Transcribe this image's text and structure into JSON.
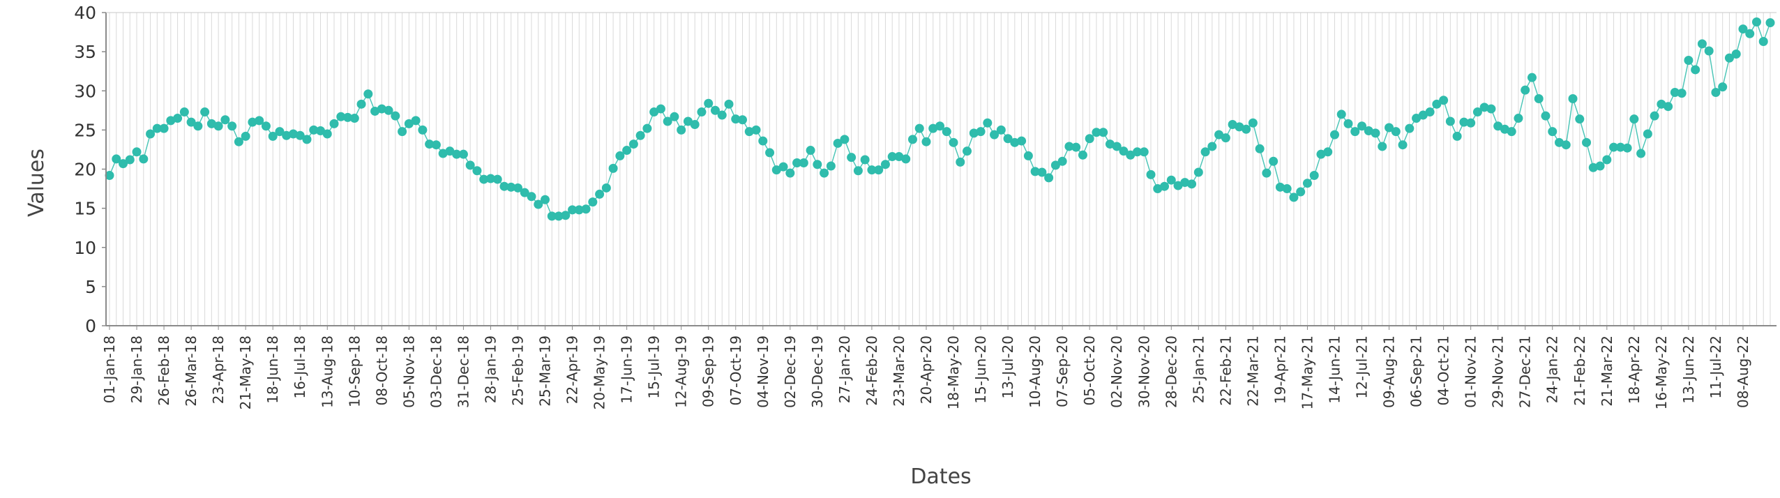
{
  "chart_data": {
    "type": "line",
    "title": "",
    "xlabel": "Dates",
    "ylabel": "Values",
    "ylim": [
      0,
      40
    ],
    "yticks": [
      0,
      5,
      10,
      15,
      20,
      25,
      30,
      35,
      40
    ],
    "x_start": "01-Jan-18",
    "x_step_days": 7,
    "xtick_labels": [
      "01-Jan-18",
      "29-Jan-18",
      "26-Feb-18",
      "26-Mar-18",
      "23-Apr-18",
      "21-May-18",
      "18-Jun-18",
      "16-Jul-18",
      "13-Aug-18",
      "10-Sep-18",
      "08-Oct-18",
      "05-Nov-18",
      "03-Dec-18",
      "31-Dec-18",
      "28-Jan-19",
      "25-Feb-19",
      "25-Mar-19",
      "22-Apr-19",
      "20-May-19",
      "17-Jun-19",
      "15-Jul-19",
      "12-Aug-19",
      "09-Sep-19",
      "07-Oct-19",
      "04-Nov-19",
      "02-Dec-19",
      "30-Dec-19",
      "27-Jan-20",
      "24-Feb-20",
      "23-Mar-20",
      "20-Apr-20",
      "18-May-20",
      "15-Jun-20",
      "13-Jul-20",
      "10-Aug-20",
      "07-Sep-20",
      "05-Oct-20",
      "02-Nov-20",
      "30-Nov-20",
      "28-Dec-20",
      "25-Jan-21",
      "22-Feb-21",
      "22-Mar-21",
      "19-Apr-21",
      "17-May-21",
      "14-Jun-21",
      "12-Jul-21",
      "09-Aug-21",
      "06-Sep-21",
      "04-Oct-21",
      "01-Nov-21",
      "29-Nov-21",
      "27-Dec-21",
      "24-Jan-22",
      "21-Feb-22",
      "21-Mar-22",
      "18-Apr-22",
      "16-May-22",
      "13-Jun-22",
      "11-Jul-22",
      "08-Aug-22"
    ],
    "grid": "vertical",
    "legend": "none",
    "series": [
      {
        "color": "#2fbcac",
        "values": [
          19.2,
          21.3,
          20.7,
          21.2,
          22.2,
          21.3,
          24.5,
          25.2,
          25.2,
          26.2,
          26.5,
          27.3,
          26.0,
          25.5,
          27.3,
          25.8,
          25.5,
          26.3,
          25.5,
          23.5,
          24.2,
          26.0,
          26.2,
          25.5,
          24.2,
          24.8,
          24.3,
          24.5,
          24.3,
          23.8,
          25.0,
          24.9,
          24.5,
          25.8,
          26.7,
          26.6,
          26.5,
          28.3,
          29.6,
          27.4,
          27.7,
          27.5,
          26.8,
          24.8,
          25.8,
          26.2,
          25.0,
          23.2,
          23.1,
          22.0,
          22.3,
          21.9,
          21.9,
          20.5,
          19.8,
          18.7,
          18.8,
          18.7,
          17.8,
          17.7,
          17.6,
          17.0,
          16.5,
          15.5,
          16.1,
          14.0,
          14.0,
          14.1,
          14.8,
          14.8,
          14.9,
          15.8,
          16.8,
          17.6,
          20.1,
          21.7,
          22.4,
          23.2,
          24.3,
          25.2,
          27.3,
          27.7,
          26.1,
          26.7,
          25.0,
          26.1,
          25.7,
          27.3,
          28.4,
          27.5,
          26.9,
          28.3,
          26.4,
          26.3,
          24.8,
          25.0,
          23.6,
          22.1,
          19.9,
          20.3,
          19.5,
          20.8,
          20.8,
          22.4,
          20.6,
          19.5,
          20.4,
          23.3,
          23.8,
          21.5,
          19.8,
          21.2,
          19.9,
          19.9,
          20.6,
          21.6,
          21.6,
          21.3,
          23.8,
          25.2,
          23.5,
          25.2,
          25.5,
          24.8,
          23.4,
          20.9,
          22.3,
          24.6,
          24.8,
          25.9,
          24.4,
          25.0,
          23.9,
          23.4,
          23.6,
          21.7,
          19.7,
          19.6,
          18.9,
          20.5,
          21.0,
          22.9,
          22.8,
          21.8,
          23.9,
          24.7,
          24.7,
          23.2,
          22.9,
          22.3,
          21.8,
          22.2,
          22.2,
          19.3,
          17.5,
          17.8,
          18.6,
          17.9,
          18.3,
          18.1,
          19.6,
          22.2,
          22.9,
          24.4,
          24.0,
          25.7,
          25.4,
          25.1,
          25.9,
          22.6,
          19.5,
          21.0,
          17.7,
          17.5,
          16.4,
          17.1,
          18.2,
          19.2,
          21.9,
          22.2,
          24.4,
          27.0,
          25.8,
          24.8,
          25.5,
          24.9,
          24.6,
          22.9,
          25.3,
          24.8,
          23.1,
          25.2,
          26.5,
          26.9,
          27.3,
          28.3,
          28.8,
          26.1,
          24.2,
          26.0,
          25.9,
          27.3,
          27.9,
          27.7,
          25.5,
          25.1,
          24.8,
          26.5,
          30.1,
          31.7,
          29.0,
          26.8,
          24.8,
          23.4,
          23.1,
          29.0,
          26.4,
          23.4,
          20.2,
          20.4,
          21.2,
          22.8,
          22.8,
          22.7,
          26.4,
          22.0,
          24.5,
          26.8,
          28.3,
          28.0,
          29.8,
          29.7,
          33.9,
          32.7,
          36.0,
          35.1,
          29.8,
          30.5,
          34.2,
          34.7,
          37.9,
          37.3,
          38.8,
          36.3,
          38.7
        ]
      }
    ]
  }
}
